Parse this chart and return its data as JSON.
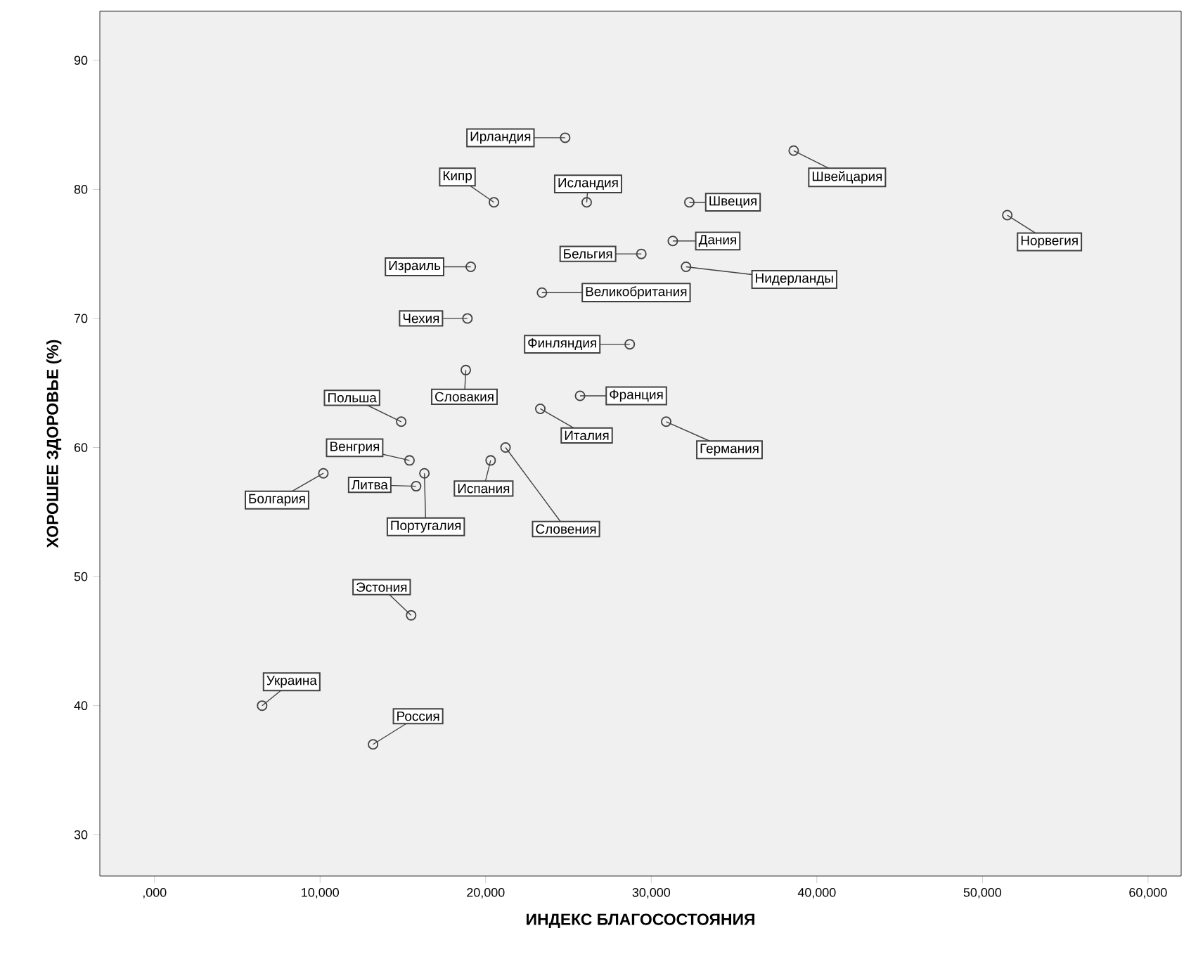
{
  "chart_data": {
    "type": "scatter",
    "xlabel": "ИНДЕКС БЛАГОСОСТОЯНИЯ",
    "ylabel": "ХОРОШЕЕ ЗДОРОВЬЕ (%)",
    "xlim": [
      -3300,
      62000
    ],
    "ylim": [
      26.8,
      93.8
    ],
    "xticks": [
      {
        "value": 0,
        "label": ",000"
      },
      {
        "value": 10000,
        "label": "10,000"
      },
      {
        "value": 20000,
        "label": "20,000"
      },
      {
        "value": 30000,
        "label": "30,000"
      },
      {
        "value": 40000,
        "label": "40,000"
      },
      {
        "value": 50000,
        "label": "50,000"
      },
      {
        "value": 60000,
        "label": "60,000"
      }
    ],
    "yticks": [
      30,
      40,
      50,
      60,
      70,
      80,
      90
    ],
    "grid": false,
    "marker": "circle",
    "series": [
      {
        "color": "#404040",
        "x": [
          24800,
          20500,
          26100,
          32300,
          38600,
          51500,
          31300,
          29400,
          32100,
          23400,
          19100,
          18900,
          28700,
          18800,
          25700,
          23300,
          30900,
          14900,
          15400,
          10200,
          15800,
          16300,
          20300,
          21200,
          15500,
          6500,
          13200
        ],
        "values": [
          84,
          79,
          79,
          79,
          83,
          78,
          76,
          75,
          74,
          72,
          74,
          70,
          68,
          66,
          64,
          63,
          62,
          62,
          59,
          58,
          57,
          58,
          59,
          60,
          47,
          40,
          37
        ]
      }
    ],
    "annotations": [
      {
        "text": "Ирландия",
        "x": 24800,
        "y": 84
      },
      {
        "text": "Кипр",
        "x": 20500,
        "y": 79
      },
      {
        "text": "Исландия",
        "x": 26100,
        "y": 79
      },
      {
        "text": "Швеция",
        "x": 32300,
        "y": 79
      },
      {
        "text": "Швейцария",
        "x": 38600,
        "y": 83
      },
      {
        "text": "Норвегия",
        "x": 51500,
        "y": 78
      },
      {
        "text": "Дания",
        "x": 31300,
        "y": 76
      },
      {
        "text": "Бельгия",
        "x": 29400,
        "y": 75
      },
      {
        "text": "Нидерланды",
        "x": 32100,
        "y": 74
      },
      {
        "text": "Великобритания",
        "x": 23400,
        "y": 72
      },
      {
        "text": "Израиль",
        "x": 19100,
        "y": 74
      },
      {
        "text": "Чехия",
        "x": 18900,
        "y": 70
      },
      {
        "text": "Финляндия",
        "x": 28700,
        "y": 68
      },
      {
        "text": "Словакия",
        "x": 18800,
        "y": 66
      },
      {
        "text": "Франция",
        "x": 25700,
        "y": 64
      },
      {
        "text": "Италия",
        "x": 23300,
        "y": 63
      },
      {
        "text": "Германия",
        "x": 30900,
        "y": 62
      },
      {
        "text": "Польша",
        "x": 14900,
        "y": 62
      },
      {
        "text": "Венгрия",
        "x": 15400,
        "y": 59
      },
      {
        "text": "Болгария",
        "x": 10200,
        "y": 58
      },
      {
        "text": "Литва",
        "x": 15800,
        "y": 57
      },
      {
        "text": "Португалия",
        "x": 16300,
        "y": 58
      },
      {
        "text": "Испания",
        "x": 20300,
        "y": 59
      },
      {
        "text": "Словения",
        "x": 21200,
        "y": 60
      },
      {
        "text": "Эстония",
        "x": 15500,
        "y": 47
      },
      {
        "text": "Украина",
        "x": 6500,
        "y": 40
      },
      {
        "text": "Россия",
        "x": 13200,
        "y": 37
      }
    ]
  }
}
